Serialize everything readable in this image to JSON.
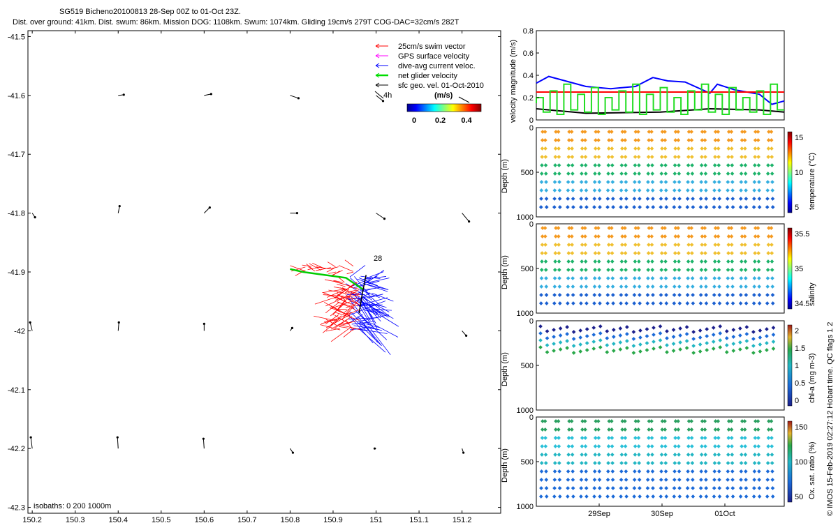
{
  "header": {
    "title_line1": "SG519 Bicheno20100813 28-Sep 00Z to 01-Oct 23Z.",
    "title_line2": "Dist. over ground: 41km. Dist. swum: 86km. Mission DOG: 1108km. Swum: 1074km. Gliding 19cm/s 279T COG-DAC=32cm/s 282T"
  },
  "map": {
    "legend": [
      {
        "label": "25cm/s swim vector",
        "color": "#ff0000"
      },
      {
        "label": "GPS surface velocity",
        "color": "#ff00ff"
      },
      {
        "label": "dive-avg current veloc.",
        "color": "#0000ff"
      },
      {
        "label": "net glider velocity",
        "color": "#00dd00"
      },
      {
        "label": "sfc geo. vel. 01-Oct-2010",
        "color": "#000000"
      }
    ],
    "scale_label": "4h",
    "colorbar_unit": "(m/s)",
    "colorbar_ticks": [
      "0",
      "0.2",
      "0.4"
    ],
    "isobaths_label": "isobaths: 0   200  1000m",
    "point_label": "28"
  },
  "chart_data": [
    {
      "type": "scatter",
      "title": "SG519 Bicheno20100813 28-Sep 00Z to 01-Oct 23Z.",
      "xlabel": "",
      "ylabel": "",
      "xlim": [
        150.19,
        151.29
      ],
      "ylim": [
        -42.31,
        -41.49
      ],
      "x_ticks": [
        "150.2",
        "150.3",
        "150.4",
        "150.5",
        "150.6",
        "150.7",
        "150.8",
        "150.9",
        "151",
        "151.1",
        "151.2"
      ],
      "y_ticks": [
        "-41.5",
        "-41.6",
        "-41.7",
        "-41.8",
        "-41.9",
        "-42",
        "-42.1",
        "-42.2",
        "-42.3"
      ],
      "glider_track": {
        "lon": [
          150.97,
          150.93,
          150.88,
          150.83,
          150.8
        ],
        "lat": [
          -41.93,
          -41.91,
          -41.905,
          -41.9,
          -41.895
        ]
      }
    },
    {
      "type": "line",
      "ylabel": "velocity magnitude (m/s)",
      "ylim": [
        0,
        0.8
      ],
      "y_ticks": [
        "0",
        "0.2",
        "0.4",
        "0.6",
        "0.8"
      ],
      "series": [
        {
          "color": "#0000ff",
          "x": [
            0,
            0.05,
            0.1,
            0.2,
            0.3,
            0.4,
            0.47,
            0.53,
            0.6,
            0.7,
            0.73,
            0.8,
            0.9,
            0.95,
            1.0
          ],
          "y": [
            0.33,
            0.39,
            0.36,
            0.3,
            0.28,
            0.3,
            0.38,
            0.35,
            0.34,
            0.24,
            0.32,
            0.27,
            0.23,
            0.14,
            0.17
          ]
        },
        {
          "color": "#ff0000",
          "x": [
            0,
            1
          ],
          "y": [
            0.25,
            0.25
          ]
        },
        {
          "color": "#000000",
          "x": [
            0,
            0.2,
            0.5,
            0.7,
            0.9,
            1.0
          ],
          "y": [
            0.1,
            0.06,
            0.07,
            0.1,
            0.09,
            0.07
          ]
        }
      ]
    },
    {
      "type": "scatter",
      "ylabel": "Depth (m)",
      "ylim": [
        1000,
        0
      ],
      "y_ticks": [
        "0",
        "500",
        "1000"
      ],
      "colorbar_label": "temperature (°C)",
      "colorbar_ticks": [
        "5",
        "10",
        "15"
      ]
    },
    {
      "type": "scatter",
      "ylabel": "Depth (m)",
      "ylim": [
        1000,
        0
      ],
      "y_ticks": [
        "0",
        "500",
        "1000"
      ],
      "colorbar_label": "salinity",
      "colorbar_ticks": [
        "34.5",
        "35",
        "35.5"
      ]
    },
    {
      "type": "scatter",
      "ylabel": "Depth (m)",
      "ylim": [
        1000,
        0
      ],
      "y_ticks": [
        "0",
        "500",
        "1000"
      ],
      "colorbar_label": "chl-a (mg m-3)",
      "colorbar_ticks": [
        "0",
        "0.5",
        "1",
        "1.5",
        "2"
      ]
    },
    {
      "type": "scatter",
      "ylabel": "Depth (m)",
      "ylim": [
        1000,
        0
      ],
      "y_ticks": [
        "0",
        "500",
        "1000"
      ],
      "colorbar_label": "Ox. sat. ratio (%)",
      "colorbar_ticks": [
        "50",
        "100",
        "150"
      ],
      "x_ticks": [
        "29Sep",
        "30Sep",
        "01Oct"
      ]
    }
  ],
  "credit": "© IMOS 15-Feb-2019 02:27:12 Hobart time. QC flags 1  2"
}
